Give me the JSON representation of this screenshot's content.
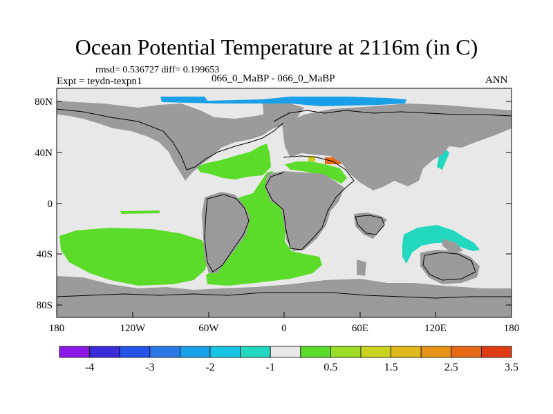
{
  "title": "Ocean Potential Temperature at 2116m (in C)",
  "stats": "rmsd= 0.536727 diff= 0.199653",
  "expt": "Expt = teydn-texpn1",
  "center_label": "066_0_MaBP - 066_0_MaBP",
  "season": "ANN",
  "lat_ticks": [
    "80N",
    "40N",
    "0",
    "40S",
    "80S"
  ],
  "lon_ticks": [
    "180",
    "120W",
    "60W",
    "0",
    "60E",
    "120E",
    "180"
  ],
  "colorbar": {
    "colors": [
      "#8c17e6",
      "#3b2bd9",
      "#2554e8",
      "#2a78e6",
      "#1aa0e8",
      "#18c4e3",
      "#22d8bf",
      "#e8e8e8",
      "#5cdc2a",
      "#9cdc26",
      "#cad420",
      "#e0b81c",
      "#e69418",
      "#e66a16",
      "#e03c14"
    ],
    "labels": [
      "-4",
      "-3",
      "-2",
      "-1",
      "0.5",
      "1.5",
      "2.5",
      "3.5"
    ]
  },
  "legend_colors": {
    "land": "#9b9b9b",
    "ocean_neutral": "#e8e8e8",
    "warm": "#5cdc2a",
    "cool": "#22d8bf",
    "blue": "#1aa0e8",
    "hot": "#e66a16"
  }
}
